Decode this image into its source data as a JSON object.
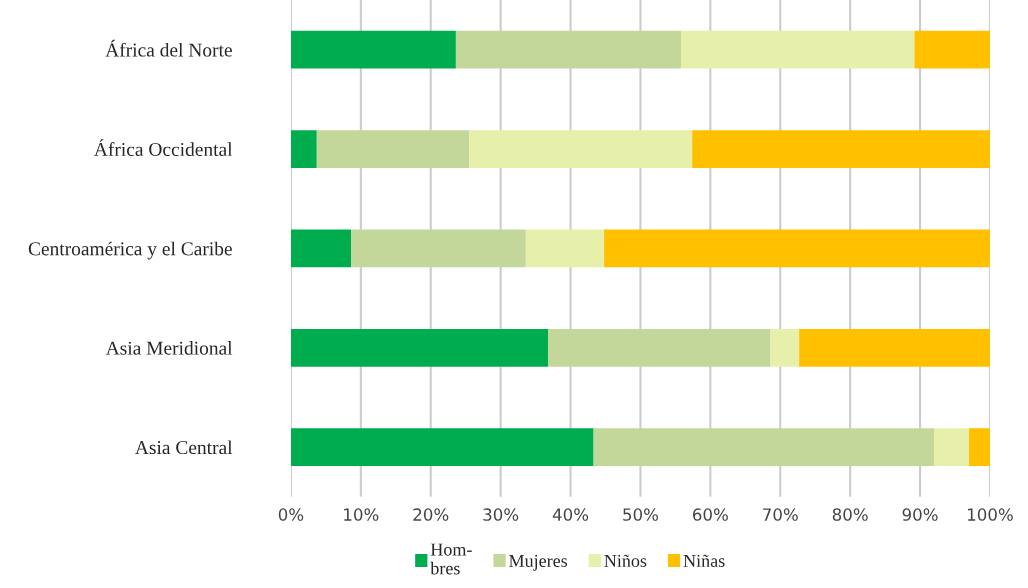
{
  "chart_data": {
    "type": "bar",
    "orientation": "horizontal",
    "stacked": true,
    "categories": [
      "África del Norte",
      "África Occidental",
      "Centroamérica y el Caribe",
      "Asia Meridional",
      "Asia Central"
    ],
    "series": [
      {
        "name": "Hom-\nbres",
        "color": "#00ad4e",
        "values": [
          23.6,
          3.7,
          8.6,
          36.8,
          43.3
        ]
      },
      {
        "name": "Mujeres",
        "color": "#c4d79b",
        "values": [
          32.2,
          21.8,
          25.0,
          31.8,
          48.7
        ]
      },
      {
        "name": "Niños",
        "color": "#e6f0aa",
        "values": [
          33.4,
          31.9,
          11.2,
          4.1,
          5.0
        ]
      },
      {
        "name": "Niñas",
        "color": "#ffc000",
        "values": [
          10.8,
          42.6,
          55.2,
          27.3,
          3.0
        ]
      }
    ],
    "xlim": [
      0,
      100
    ],
    "xticks": [
      {
        "value": 0,
        "label": "0%"
      },
      {
        "value": 10,
        "label": "10%"
      },
      {
        "value": 20,
        "label": "20%"
      },
      {
        "value": 30,
        "label": "30%"
      },
      {
        "value": 40,
        "label": "40%"
      },
      {
        "value": 50,
        "label": "50%"
      },
      {
        "value": 60,
        "label": "60%"
      },
      {
        "value": 70,
        "label": "70%"
      },
      {
        "value": 80,
        "label": "80%"
      },
      {
        "value": 90,
        "label": "90%"
      },
      {
        "value": 100,
        "label": "100%"
      }
    ],
    "grid": "x",
    "legend": "bottom"
  }
}
